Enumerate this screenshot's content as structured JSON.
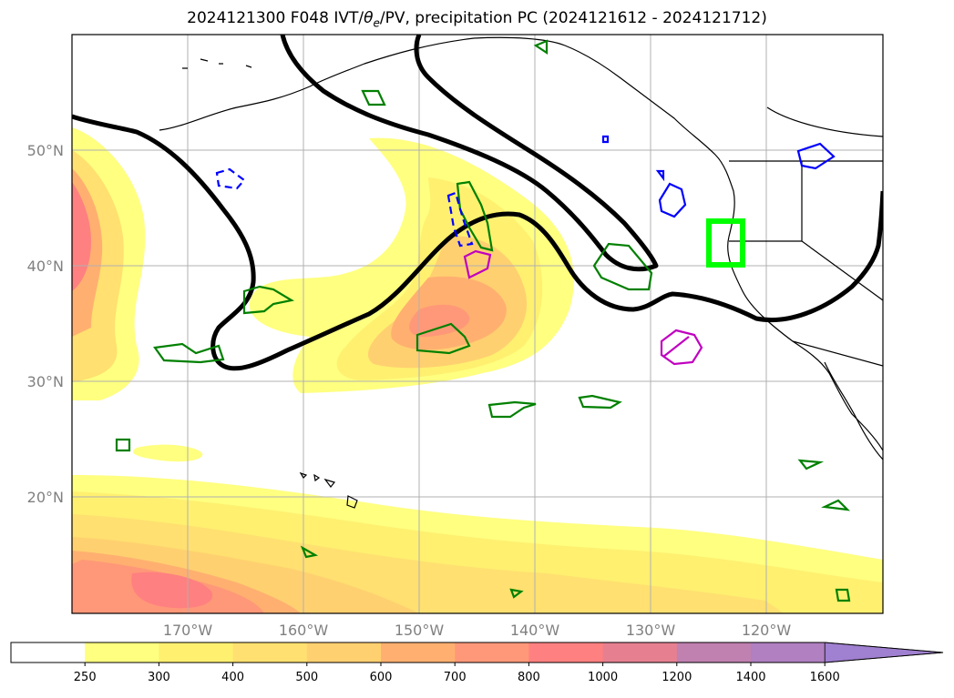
{
  "title": {
    "prefix": "2024121300 F048 IVT/",
    "theta_symbol": "θ",
    "theta_sub": "e",
    "suffix": "/PV, precipitation PC (2024121612 - 2024121712)"
  },
  "map": {
    "lon_labels": [
      "170°W",
      "160°W",
      "150°W",
      "140°W",
      "130°W",
      "120°W"
    ],
    "lat_labels": [
      "50°N",
      "40°N",
      "30°N",
      "20°N"
    ],
    "colors": {
      "thick_contour": "#000000",
      "precip_low": "#008000",
      "precip_blue": "#0000ff",
      "precip_magenta": "#c000c0",
      "target_box": "#00ff00",
      "grid": "#b0b0b0"
    }
  },
  "colorbar": {
    "ticks": [
      "250",
      "300",
      "400",
      "500",
      "600",
      "700",
      "800",
      "1000",
      "1200",
      "1400",
      "1600"
    ],
    "colors": [
      "#ffffff",
      "#ffff80",
      "#fff070",
      "#ffe070",
      "#ffd070",
      "#ffb070",
      "#ff9878",
      "#ff8080",
      "#e68090",
      "#c080b0",
      "#b080c0",
      "#a080d0"
    ],
    "extend": "max"
  }
}
